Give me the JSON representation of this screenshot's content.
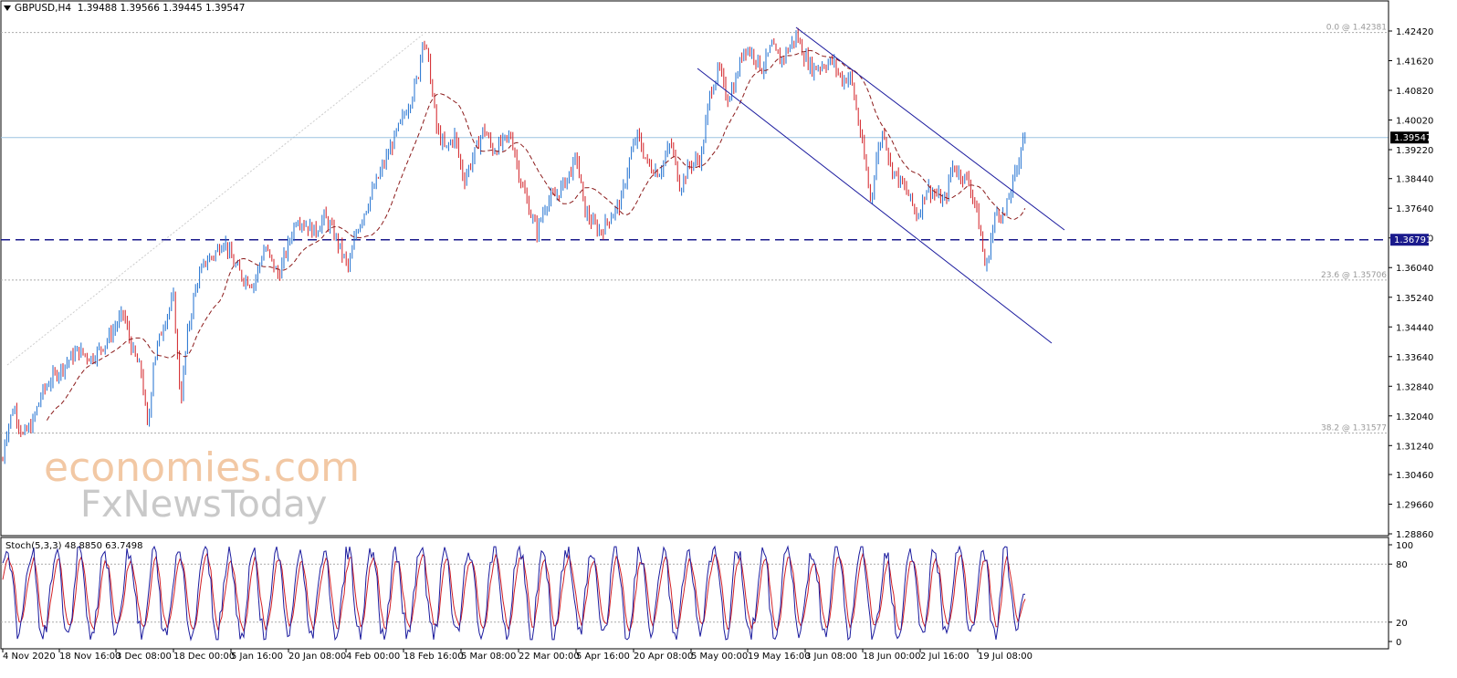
{
  "header": {
    "symbol": "GBPUSD,H4",
    "ohlc": "1.39488 1.39566 1.39445 1.39547"
  },
  "stoch_label": "Stoch(5,3,3) 48.8850 63.7498",
  "watermark": {
    "line1": "economies.com",
    "line2": "FxNewsToday"
  },
  "chart_data": {
    "type": "candlestick",
    "symbol": "GBPUSD",
    "timeframe": "H4",
    "price_axis_ticks": [
      "1.42420",
      "1.41620",
      "1.40820",
      "1.40020",
      "1.39220",
      "1.38440",
      "1.37640",
      "1.36840",
      "1.36040",
      "1.35240",
      "1.34440",
      "1.33640",
      "1.32840",
      "1.32040",
      "1.31240",
      "1.30460",
      "1.29660",
      "1.28860"
    ],
    "ylim": [
      1.2874,
      1.4271
    ],
    "x_labels": [
      "4 Nov 2020",
      "18 Nov 16:00",
      "3 Dec 08:00",
      "18 Dec 00:00",
      "5 Jan 16:00",
      "20 Jan 08:00",
      "4 Feb 00:00",
      "18 Feb 16:00",
      "5 Mar 08:00",
      "22 Mar 00:00",
      "5 Apr 16:00",
      "20 Apr 08:00",
      "5 May 00:00",
      "19 May 16:00",
      "3 Jun 08:00",
      "18 Jun 00:00",
      "2 Jul 16:00",
      "19 Jul 08:00"
    ],
    "price_path": [
      [
        0,
        1.3
      ],
      [
        5,
        1.314
      ],
      [
        15,
        1.323
      ],
      [
        25,
        1.315
      ],
      [
        35,
        1.318
      ],
      [
        45,
        1.326
      ],
      [
        55,
        1.33
      ],
      [
        70,
        1.334
      ],
      [
        85,
        1.338
      ],
      [
        100,
        1.336
      ],
      [
        115,
        1.34
      ],
      [
        125,
        1.344
      ],
      [
        135,
        1.348
      ],
      [
        145,
        1.338
      ],
      [
        155,
        1.332
      ],
      [
        162,
        1.316
      ],
      [
        168,
        1.335
      ],
      [
        180,
        1.346
      ],
      [
        190,
        1.352
      ],
      [
        198,
        1.324
      ],
      [
        205,
        1.342
      ],
      [
        215,
        1.356
      ],
      [
        225,
        1.362
      ],
      [
        235,
        1.364
      ],
      [
        245,
        1.368
      ],
      [
        255,
        1.362
      ],
      [
        265,
        1.358
      ],
      [
        278,
        1.356
      ],
      [
        290,
        1.366
      ],
      [
        305,
        1.358
      ],
      [
        315,
        1.366
      ],
      [
        325,
        1.374
      ],
      [
        335,
        1.372
      ],
      [
        345,
        1.37
      ],
      [
        355,
        1.374
      ],
      [
        365,
        1.37
      ],
      [
        375,
        1.364
      ],
      [
        382,
        1.36
      ],
      [
        390,
        1.37
      ],
      [
        400,
        1.376
      ],
      [
        410,
        1.382
      ],
      [
        420,
        1.388
      ],
      [
        430,
        1.394
      ],
      [
        440,
        1.4
      ],
      [
        450,
        1.406
      ],
      [
        458,
        1.412
      ],
      [
        463,
        1.423
      ],
      [
        470,
        1.415
      ],
      [
        478,
        1.398
      ],
      [
        488,
        1.392
      ],
      [
        498,
        1.396
      ],
      [
        508,
        1.384
      ],
      [
        518,
        1.39
      ],
      [
        530,
        1.398
      ],
      [
        540,
        1.392
      ],
      [
        550,
        1.394
      ],
      [
        560,
        1.396
      ],
      [
        570,
        1.384
      ],
      [
        580,
        1.376
      ],
      [
        588,
        1.37
      ],
      [
        598,
        1.378
      ],
      [
        610,
        1.38
      ],
      [
        620,
        1.384
      ],
      [
        632,
        1.39
      ],
      [
        640,
        1.376
      ],
      [
        650,
        1.372
      ],
      [
        658,
        1.37
      ],
      [
        668,
        1.374
      ],
      [
        680,
        1.378
      ],
      [
        690,
        1.39
      ],
      [
        698,
        1.396
      ],
      [
        710,
        1.388
      ],
      [
        722,
        1.386
      ],
      [
        735,
        1.394
      ],
      [
        745,
        1.382
      ],
      [
        755,
        1.388
      ],
      [
        768,
        1.39
      ],
      [
        778,
        1.408
      ],
      [
        788,
        1.414
      ],
      [
        796,
        1.406
      ],
      [
        805,
        1.41
      ],
      [
        815,
        1.42
      ],
      [
        825,
        1.418
      ],
      [
        835,
        1.414
      ],
      [
        845,
        1.42
      ],
      [
        855,
        1.416
      ],
      [
        865,
        1.42
      ],
      [
        873,
        1.423
      ],
      [
        880,
        1.418
      ],
      [
        890,
        1.414
      ],
      [
        900,
        1.415
      ],
      [
        912,
        1.416
      ],
      [
        922,
        1.411
      ],
      [
        932,
        1.412
      ],
      [
        940,
        1.4
      ],
      [
        948,
        1.388
      ],
      [
        954,
        1.378
      ],
      [
        960,
        1.39
      ],
      [
        968,
        1.398
      ],
      [
        975,
        1.388
      ],
      [
        985,
        1.384
      ],
      [
        995,
        1.38
      ],
      [
        1005,
        1.374
      ],
      [
        1015,
        1.382
      ],
      [
        1025,
        1.38
      ],
      [
        1035,
        1.378
      ],
      [
        1043,
        1.388
      ],
      [
        1050,
        1.386
      ],
      [
        1060,
        1.384
      ],
      [
        1068,
        1.378
      ],
      [
        1075,
        1.368
      ],
      [
        1080,
        1.359
      ],
      [
        1085,
        1.368
      ],
      [
        1092,
        1.376
      ],
      [
        1100,
        1.374
      ],
      [
        1108,
        1.382
      ],
      [
        1115,
        1.388
      ],
      [
        1120,
        1.396
      ],
      [
        1124,
        1.3955
      ]
    ],
    "moving_average": "dashed dark red",
    "horizontal_level": {
      "value": "1.36791",
      "style": "dashed navy"
    },
    "current_price": {
      "value": "1.39547"
    },
    "fibonacci": [
      {
        "label": "0.0 @ 1.42381",
        "value": 1.42381
      },
      {
        "label": "23.6 @ 1.35706",
        "value": 1.35706
      },
      {
        "label": "38.2 @ 1.31577",
        "value": 1.31577
      }
    ],
    "channel": {
      "color": "#1a1a9e",
      "direction": "descending"
    },
    "stochastic": {
      "name": "Stoch(5,3,3)",
      "main": 48.885,
      "signal": 63.7498,
      "levels": [
        20,
        80
      ],
      "axis_ticks": [
        "100",
        "80",
        "20",
        "0"
      ]
    },
    "grid": false
  },
  "colors": {
    "bull": "#1e6fd0",
    "bear": "#d21f24",
    "ma": "#8b1a1a",
    "level_line": "#1a1a8c",
    "channel": "#1a1a9e",
    "watermark_orange": "#f2c8a4",
    "watermark_gray": "#c9c9c9"
  }
}
